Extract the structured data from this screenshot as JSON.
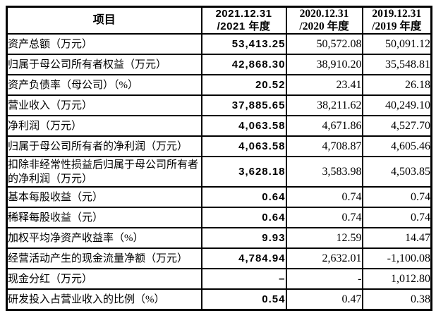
{
  "table": {
    "header": {
      "item_label": "项目",
      "columns": [
        {
          "line1": "2021.12.31",
          "line2": "/2021 年度"
        },
        {
          "line1": "2020.12.31",
          "line2": "/2020 年度"
        },
        {
          "line1": "2019.12.31",
          "line2": "/2019 年度"
        }
      ]
    },
    "rows": [
      {
        "label": "资产总额（万元）",
        "v2021": "53,413.25",
        "v2020": "50,572.08",
        "v2019": "50,091.12"
      },
      {
        "label": "归属于母公司所有者权益（万元）",
        "v2021": "42,868.30",
        "v2020": "38,910.20",
        "v2019": "35,548.81"
      },
      {
        "label": "资产负债率（母公司）（%）",
        "v2021": "20.52",
        "v2020": "23.41",
        "v2019": "26.18"
      },
      {
        "label": "营业收入（万元）",
        "v2021": "37,885.65",
        "v2020": "38,211.62",
        "v2019": "40,249.10"
      },
      {
        "label": "净利润（万元）",
        "v2021": "4,063.58",
        "v2020": "4,671.86",
        "v2019": "4,527.70"
      },
      {
        "label": "归属于母公司所有者的净利润（万元）",
        "v2021": "4,063.58",
        "v2020": "4,708.87",
        "v2019": "4,605.46"
      },
      {
        "label": "扣除非经常性损益后归属于母公司所有者的净利润（万元）",
        "v2021": "3,628.18",
        "v2020": "3,583.98",
        "v2019": "4,503.85"
      },
      {
        "label": "基本每股收益（元）",
        "v2021": "0.64",
        "v2020": "0.74",
        "v2019": "0.74"
      },
      {
        "label": "稀释每股收益（元）",
        "v2021": "0.64",
        "v2020": "0.74",
        "v2019": "0.74"
      },
      {
        "label": "加权平均净资产收益率（%）",
        "v2021": "9.93",
        "v2020": "12.59",
        "v2019": "14.47"
      },
      {
        "label": "经营活动产生的现金流量净额（万元）",
        "v2021": "4,784.94",
        "v2020": "2,632.01",
        "v2019": "-1,100.08"
      },
      {
        "label": "现金分红（万元）",
        "v2021": "–",
        "v2020": "-",
        "v2019": "1,012.80"
      },
      {
        "label": "研发投入占营业收入的比例（%）",
        "v2021": "0.54",
        "v2020": "0.47",
        "v2019": "0.38"
      }
    ]
  }
}
